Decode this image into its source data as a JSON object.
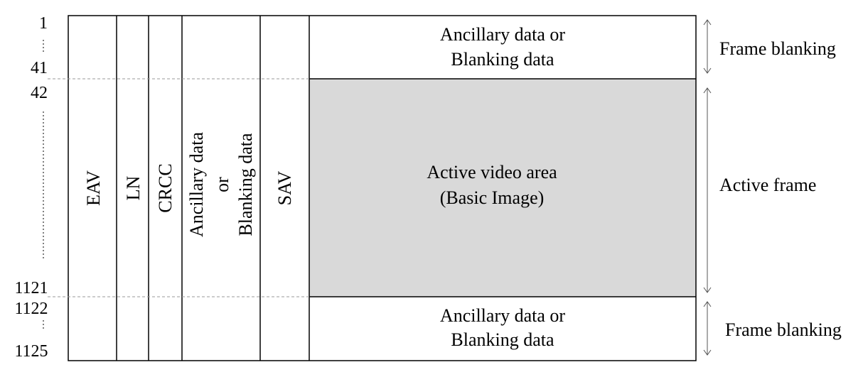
{
  "line_numbers": {
    "first": "1",
    "top_blank_end": "41",
    "active_start": "42",
    "active_end": "1121",
    "bottom_blank_start": "1122",
    "last": "1125"
  },
  "columns": {
    "eav": "EAV",
    "ln": "LN",
    "crcc": "CRCC",
    "ancillary_line1": "Ancillary data",
    "ancillary_line2": "or",
    "ancillary_line3": "Blanking data",
    "sav": "SAV"
  },
  "top_region": {
    "line1": "Ancillary data or",
    "line2": "Blanking data"
  },
  "active_region": {
    "line1": "Active video area",
    "line2": "(Basic Image)",
    "fill": "#d9d9d9"
  },
  "bottom_region": {
    "line1": "Ancillary data or",
    "line2": "Blanking data"
  },
  "side_labels": {
    "frame_blanking_top": "Frame blanking",
    "active_frame": "Active frame",
    "frame_blanking_bottom": "Frame blanking"
  }
}
